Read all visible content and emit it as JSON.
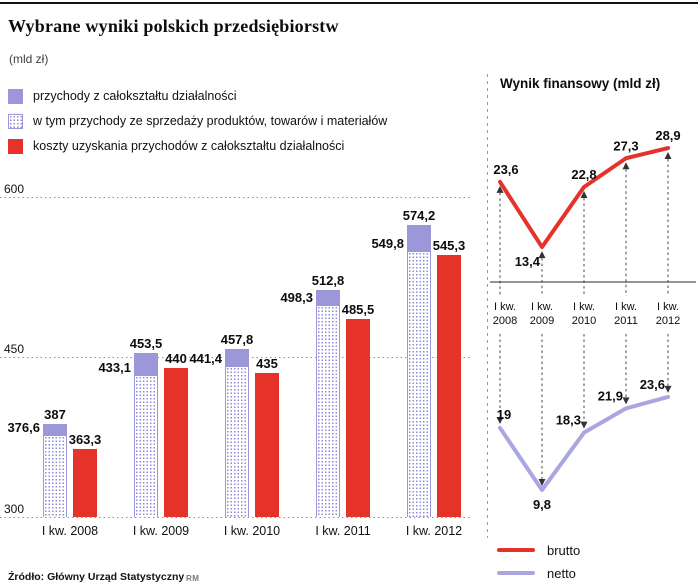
{
  "header": {
    "title": "Wybrane wyniki polskich przedsiębiorstw",
    "unit": "(mld zł)"
  },
  "legend": [
    {
      "label": "przychody z całokształtu działalności",
      "swatch": "purple-square"
    },
    {
      "label": "w tym przychody ze sprzedaży produktów, towarów i materiałów",
      "swatch": "dotted-square"
    },
    {
      "label": "koszty uzyskania przychodów z całokształtu działalności",
      "swatch": "red-square"
    }
  ],
  "colors": {
    "purple": "#9b97d9",
    "purple_light": "#aaa6e0",
    "red": "#e5332a",
    "grid": "#8f8f8f",
    "text": "#111111"
  },
  "chart_data": [
    {
      "type": "bar",
      "title": "",
      "categories": [
        "I kw. 2008",
        "I kw. 2009",
        "I kw. 2010",
        "I kw. 2011",
        "I kw. 2012"
      ],
      "series": [
        {
          "name": "przychody z całokształtu działalności",
          "values": [
            387,
            453.5,
            457.8,
            512.8,
            574.2
          ],
          "labels": [
            "387",
            "453,5",
            "457,8",
            "512,8",
            "574,2"
          ]
        },
        {
          "name": "w tym przychody ze sprzedaży produktów, towarów i materiałów",
          "values": [
            376.6,
            433.1,
            441.4,
            498.3,
            549.8
          ],
          "labels": [
            "376,6",
            "433,1",
            "441,4",
            "498,3",
            "549,8"
          ]
        },
        {
          "name": "koszty uzyskania przychodów z całokształtu działalności",
          "values": [
            363.3,
            440,
            435,
            485.5,
            545.3
          ],
          "labels": [
            "363,3",
            "440",
            "435",
            "485,5",
            "545,3"
          ]
        }
      ],
      "ylabel": "mld zł",
      "ylim": [
        300,
        600
      ],
      "yticks": [
        300,
        450,
        600
      ],
      "grid": true
    },
    {
      "type": "line",
      "title": "Wynik finansowy (mld zł)",
      "categories": [
        "I kw. 2008",
        "I kw. 2009",
        "I kw. 2010",
        "I kw. 2011",
        "I kw. 2012"
      ],
      "series": [
        {
          "name": "brutto",
          "color": "#e5332a",
          "values": [
            23.6,
            13.4,
            22.8,
            27.3,
            28.9
          ],
          "labels": [
            "23,6",
            "13,4",
            "22,8",
            "27,3",
            "28,9"
          ]
        },
        {
          "name": "netto",
          "color": "#aaa6e0",
          "values": [
            19,
            9.8,
            18.3,
            21.9,
            23.6
          ],
          "labels": [
            "19",
            "9,8",
            "18,3",
            "21,9",
            "23,6"
          ]
        }
      ],
      "legend_position": "bottom-right",
      "grid": false
    }
  ],
  "footer": {
    "source": "Źródło: Główny Urząd Statystyczny",
    "credit": "RM"
  }
}
